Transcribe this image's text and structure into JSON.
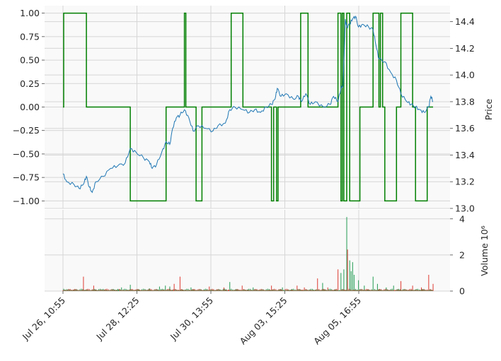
{
  "colors": {
    "panel_bg": "#f9f9f9",
    "grid": "#d6d6d6",
    "signal": "#008000",
    "price": "#1f77b4",
    "vol_up": "#2ca05a",
    "vol_down": "#e0443c"
  },
  "chart_data": [
    {
      "type": "line",
      "panel": "main",
      "series": [
        {
          "role": "signal",
          "axis": "left",
          "x": [
            0,
            1,
            1,
            32,
            32,
            92,
            92,
            141,
            141,
            166,
            166,
            168,
            168,
            182,
            182,
            190,
            190,
            230,
            230,
            246,
            246,
            285,
            285,
            288,
            288,
            292,
            292,
            294,
            294,
            325,
            325,
            335,
            335,
            376,
            376,
            380,
            380,
            382,
            382,
            384,
            384,
            388,
            388,
            392,
            392,
            406,
            406,
            424,
            424,
            432,
            432,
            434,
            434,
            437,
            437,
            440,
            440,
            456,
            456,
            462,
            462,
            478,
            478,
            482,
            482,
            498,
            498,
            506
          ],
          "y": [
            0,
            0,
            1,
            1,
            0,
            0,
            -1,
            -1,
            0,
            0,
            1,
            1,
            0,
            0,
            -1,
            -1,
            0,
            0,
            1,
            1,
            0,
            0,
            -1,
            -1,
            0,
            0,
            -1,
            -1,
            0,
            0,
            1,
            1,
            0,
            0,
            1,
            1,
            -1,
            -1,
            1,
            1,
            -1,
            -1,
            1,
            1,
            -1,
            -1,
            0,
            0,
            1,
            1,
            0,
            0,
            1,
            1,
            0,
            0,
            -1,
            -1,
            0,
            0,
            1,
            1,
            0,
            0,
            -1,
            -1,
            0,
            0
          ]
        },
        {
          "role": "price",
          "axis": "right",
          "points": [
            [
              0,
              13.26
            ],
            [
              5,
              13.2
            ],
            [
              15,
              13.18
            ],
            [
              22,
              13.15
            ],
            [
              28,
              13.18
            ],
            [
              32,
              13.24
            ],
            [
              36,
              13.16
            ],
            [
              40,
              13.12
            ],
            [
              45,
              13.2
            ],
            [
              55,
              13.24
            ],
            [
              65,
              13.3
            ],
            [
              75,
              13.32
            ],
            [
              85,
              13.34
            ],
            [
              92,
              13.45
            ],
            [
              100,
              13.42
            ],
            [
              110,
              13.38
            ],
            [
              118,
              13.35
            ],
            [
              122,
              13.3
            ],
            [
              128,
              13.33
            ],
            [
              135,
              13.42
            ],
            [
              141,
              13.5
            ],
            [
              146,
              13.48
            ],
            [
              150,
              13.6
            ],
            [
              155,
              13.68
            ],
            [
              160,
              13.7
            ],
            [
              166,
              13.74
            ],
            [
              172,
              13.68
            ],
            [
              178,
              13.58
            ],
            [
              185,
              13.62
            ],
            [
              195,
              13.6
            ],
            [
              205,
              13.58
            ],
            [
              212,
              13.62
            ],
            [
              222,
              13.64
            ],
            [
              228,
              13.74
            ],
            [
              235,
              13.76
            ],
            [
              246,
              13.74
            ],
            [
              255,
              13.72
            ],
            [
              262,
              13.74
            ],
            [
              270,
              13.72
            ],
            [
              278,
              13.76
            ],
            [
              285,
              13.78
            ],
            [
              290,
              13.82
            ],
            [
              293,
              13.9
            ],
            [
              298,
              13.84
            ],
            [
              305,
              13.86
            ],
            [
              315,
              13.82
            ],
            [
              322,
              13.84
            ],
            [
              326,
              13.8
            ],
            [
              332,
              13.86
            ],
            [
              338,
              13.78
            ],
            [
              345,
              13.8
            ],
            [
              356,
              13.76
            ],
            [
              365,
              13.78
            ],
            [
              370,
              13.84
            ],
            [
              376,
              13.8
            ],
            [
              380,
              13.9
            ],
            [
              383,
              13.92
            ],
            [
              386,
              14.42
            ],
            [
              388,
              14.36
            ],
            [
              392,
              14.38
            ],
            [
              396,
              14.42
            ],
            [
              400,
              14.44
            ],
            [
              404,
              14.36
            ],
            [
              410,
              14.38
            ],
            [
              418,
              14.36
            ],
            [
              424,
              14.34
            ],
            [
              428,
              14.22
            ],
            [
              432,
              14.12
            ],
            [
              440,
              14.1
            ],
            [
              448,
              14.02
            ],
            [
              456,
              13.96
            ],
            [
              462,
              13.86
            ],
            [
              470,
              13.8
            ],
            [
              476,
              13.78
            ],
            [
              482,
              13.76
            ],
            [
              488,
              13.74
            ],
            [
              494,
              13.72
            ],
            [
              500,
              13.76
            ],
            [
              503,
              13.84
            ],
            [
              506,
              13.8
            ]
          ]
        }
      ],
      "yleft_ticks": [
        "1.00",
        "0.75",
        "0.50",
        "0.25",
        "0.00",
        "−0.25",
        "−0.50",
        "−0.75",
        "−1.00"
      ],
      "yleft_range": [
        -1.08,
        1.08
      ],
      "yright_ticks": [
        "14.4",
        "14.2",
        "14.0",
        "13.8",
        "13.6",
        "13.4",
        "13.2",
        "13.0"
      ],
      "yright_range": [
        13.0,
        14.52
      ],
      "ylabel": "Price",
      "grid": true
    },
    {
      "type": "bar",
      "panel": "volume",
      "peaks": [
        [
          5,
          0.1
        ],
        [
          28,
          0.8
        ],
        [
          42,
          0.3
        ],
        [
          55,
          0.12
        ],
        [
          80,
          0.2
        ],
        [
          92,
          0.35
        ],
        [
          118,
          0.15
        ],
        [
          132,
          0.25
        ],
        [
          140,
          0.3
        ],
        [
          146,
          0.25
        ],
        [
          152,
          0.4
        ],
        [
          160,
          0.8
        ],
        [
          175,
          0.2
        ],
        [
          200,
          0.25
        ],
        [
          220,
          0.2
        ],
        [
          228,
          0.5
        ],
        [
          245,
          0.3
        ],
        [
          260,
          0.2
        ],
        [
          285,
          0.3
        ],
        [
          300,
          0.2
        ],
        [
          320,
          0.3
        ],
        [
          330,
          0.2
        ],
        [
          348,
          0.7
        ],
        [
          355,
          0.45
        ],
        [
          362,
          0.2
        ],
        [
          376,
          1.2
        ],
        [
          380,
          1.0
        ],
        [
          384,
          1.2
        ],
        [
          388,
          4.1
        ],
        [
          389,
          2.3
        ],
        [
          392,
          1.7
        ],
        [
          394,
          1.1
        ],
        [
          396,
          1.6
        ],
        [
          398,
          0.9
        ],
        [
          404,
          0.6
        ],
        [
          412,
          0.3
        ],
        [
          424,
          0.8
        ],
        [
          430,
          0.4
        ],
        [
          442,
          0.2
        ],
        [
          452,
          0.3
        ],
        [
          462,
          0.55
        ],
        [
          478,
          0.3
        ],
        [
          490,
          0.2
        ],
        [
          500,
          0.9
        ],
        [
          506,
          0.4
        ]
      ],
      "yticks": [
        "0",
        "2",
        "4"
      ],
      "ylim": [
        0,
        4.5
      ],
      "ylabel": "Volume  10⁶",
      "grid": true
    }
  ],
  "x_ticks": [
    "Jul 26, 10:55",
    "Jul 28, 12:25",
    "Jul 30, 13:55",
    "Aug 03, 15:25",
    "Aug 05, 16:55"
  ],
  "x_range": [
    0,
    506
  ]
}
